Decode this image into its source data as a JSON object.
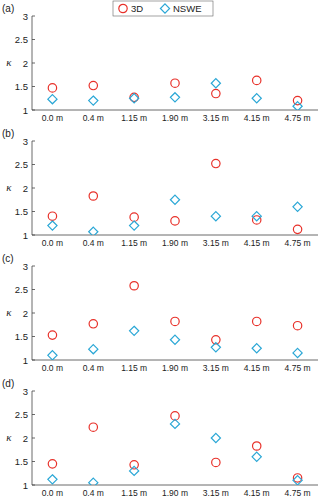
{
  "chart_data": [
    {
      "type": "scatter",
      "title": "(a)",
      "y_label": "κ",
      "legend": "top",
      "categories": [
        "0.0 m",
        "0.4 m",
        "1.15 m",
        "1.90 m",
        "3.15 m",
        "4.15 m",
        "4.75 m"
      ],
      "series": [
        {
          "name": "3D",
          "color": "#e8312a",
          "marker": "circle",
          "values": [
            1.47,
            1.52,
            1.27,
            1.57,
            1.35,
            1.63,
            1.2
          ]
        },
        {
          "name": "NSWE",
          "color": "#2aa7d6",
          "marker": "diamond",
          "values": [
            1.23,
            1.2,
            1.25,
            1.27,
            1.57,
            1.25,
            1.08
          ]
        }
      ],
      "ylim": [
        1,
        3
      ],
      "yticks": [
        1,
        1.5,
        2,
        2.5,
        3
      ]
    },
    {
      "type": "scatter",
      "title": "(b)",
      "y_label": "κ",
      "categories": [
        "0.0 m",
        "0.4 m",
        "1.15 m",
        "1.90 m",
        "3.15 m",
        "4.15 m",
        "4.75 m"
      ],
      "series": [
        {
          "name": "3D",
          "color": "#e8312a",
          "marker": "circle",
          "values": [
            1.4,
            1.83,
            1.38,
            1.3,
            2.52,
            1.32,
            1.12
          ]
        },
        {
          "name": "NSWE",
          "color": "#2aa7d6",
          "marker": "diamond",
          "values": [
            1.2,
            1.07,
            1.2,
            1.75,
            1.4,
            1.4,
            1.6
          ]
        }
      ],
      "ylim": [
        1,
        3
      ],
      "yticks": [
        1,
        1.5,
        2,
        2.5,
        3
      ]
    },
    {
      "type": "scatter",
      "title": "(c)",
      "y_label": "κ",
      "categories": [
        "0.0 m",
        "0.4 m",
        "1.15 m",
        "1.90 m",
        "3.15 m",
        "4.15 m",
        "4.75 m"
      ],
      "series": [
        {
          "name": "3D",
          "color": "#e8312a",
          "marker": "circle",
          "values": [
            1.53,
            1.77,
            2.58,
            1.82,
            1.43,
            1.82,
            1.73
          ]
        },
        {
          "name": "NSWE",
          "color": "#2aa7d6",
          "marker": "diamond",
          "values": [
            1.1,
            1.23,
            1.62,
            1.43,
            1.27,
            1.25,
            1.15
          ]
        }
      ],
      "ylim": [
        1,
        3
      ],
      "yticks": [
        1,
        1.5,
        2,
        2.5,
        3
      ]
    },
    {
      "type": "scatter",
      "title": "(d)",
      "y_label": "κ",
      "categories": [
        "0.0 m",
        "0.4 m",
        "1.15 m",
        "1.90 m",
        "3.15 m",
        "4.15 m",
        "4.75 m"
      ],
      "series": [
        {
          "name": "3D",
          "color": "#e8312a",
          "marker": "circle",
          "values": [
            1.45,
            2.23,
            1.43,
            2.47,
            1.48,
            1.83,
            1.15
          ]
        },
        {
          "name": "NSWE",
          "color": "#2aa7d6",
          "marker": "diamond",
          "values": [
            1.12,
            1.05,
            1.3,
            2.3,
            2.0,
            1.6,
            1.1
          ]
        }
      ],
      "ylim": [
        1,
        3
      ],
      "yticks": [
        1,
        1.5,
        2,
        2.5,
        3
      ]
    }
  ]
}
